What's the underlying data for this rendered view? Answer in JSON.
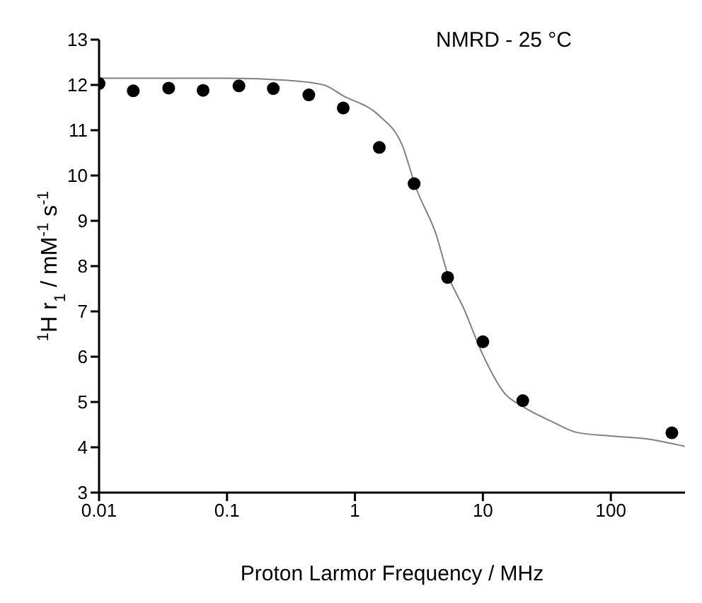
{
  "chart_data": {
    "type": "scatter",
    "title": "NMRD - 25 °C",
    "xlabel": "Proton Larmor Frequency / MHz",
    "ylabel": "$^{1}$H r$_{1}$ / mM$^{-1}$ s$^{-1}$",
    "log": "x",
    "xlim": [
      0.01,
      380
    ],
    "xticks": [
      0.01,
      0.1,
      1,
      10,
      100
    ],
    "ylim": [
      3,
      13
    ],
    "yticks": [
      3,
      4,
      5,
      6,
      7,
      8,
      9,
      10,
      11,
      12,
      13
    ],
    "series": [
      {
        "color": "#000000",
        "marker": "circle",
        "x": [
          0.01,
          0.0185,
          0.035,
          0.065,
          0.124,
          0.23,
          0.436,
          0.81,
          1.55,
          2.9,
          5.3,
          10,
          20.5,
          300
        ],
        "values": [
          12.03,
          11.87,
          11.93,
          11.88,
          11.98,
          11.92,
          11.78,
          11.49,
          10.62,
          9.82,
          7.75,
          6.33,
          5.03,
          4.32
        ]
      },
      {
        "type": "line",
        "color": "#808080",
        "marker": "none",
        "line_style": "solid",
        "x": [
          0.01,
          0.1,
          0.3,
          0.57,
          0.81,
          1.55,
          2.34,
          3.0,
          4.33,
          5.3,
          7.1,
          10,
          14.8,
          20.5,
          35,
          54,
          100,
          185,
          378
        ],
        "values": [
          12.15,
          12.15,
          12.1,
          12.0,
          11.76,
          11.32,
          10.67,
          9.73,
          8.68,
          7.83,
          7.06,
          6.04,
          5.19,
          4.9,
          4.56,
          4.33,
          4.25,
          4.19,
          4.02
        ]
      }
    ]
  }
}
